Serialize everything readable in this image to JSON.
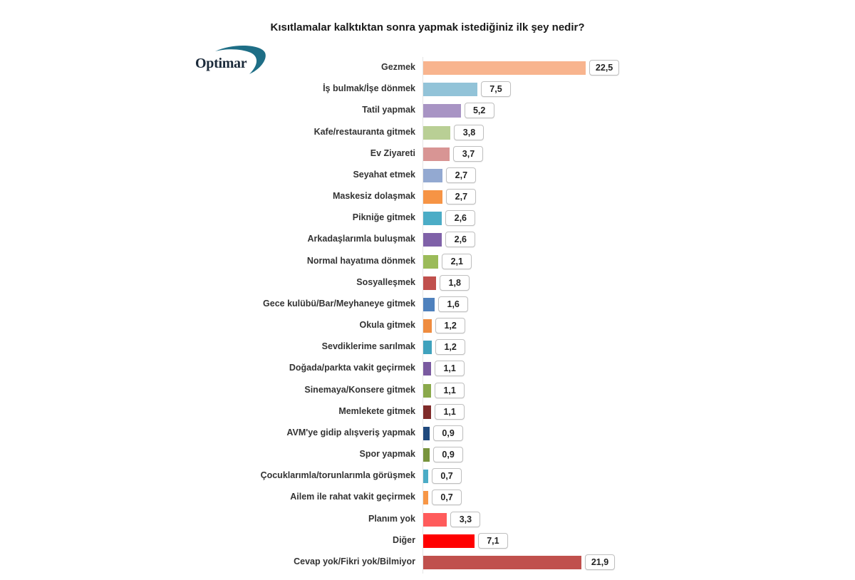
{
  "header": {
    "title": "Kısıtlamalar kalktıktan sonra yapmak istediğiniz ilk şey nedir?",
    "logo_text": "Optimar"
  },
  "chart_data": {
    "type": "bar",
    "orientation": "horizontal",
    "title": "Kısıtlamalar kalktıktan sonra yapmak istediğiniz ilk şey nedir?",
    "xlabel": "",
    "ylabel": "",
    "grid": false,
    "legend": null,
    "value_format": "comma-decimal",
    "categories": [
      "Gezmek",
      "İş bulmak/İşe dönmek",
      "Tatil yapmak",
      "Kafe/restauranta gitmek",
      "Ev Ziyareti",
      "Seyahat etmek",
      "Maskesiz dolaşmak",
      "Pikniğe gitmek",
      "Arkadaşlarımla buluşmak",
      "Normal hayatıma dönmek",
      "Sosyalleşmek",
      "Gece kulübü/Bar/Meyhaneye gitmek",
      "Okula gitmek",
      "Sevdiklerime sarılmak",
      "Doğada/parkta vakit geçirmek",
      "Sinemaya/Konsere gitmek",
      "Memlekete gitmek",
      "AVM'ye gidip alışveriş yapmak",
      "Spor yapmak",
      "Çocuklarımla/torunlarımla görüşmek",
      "Ailem ile rahat vakit geçirmek",
      "Planım yok",
      "Diğer",
      "Cevap yok/Fikri yok/Bilmiyor"
    ],
    "values": [
      22.5,
      7.5,
      5.2,
      3.8,
      3.7,
      2.7,
      2.7,
      2.6,
      2.6,
      2.1,
      1.8,
      1.6,
      1.2,
      1.2,
      1.1,
      1.1,
      1.1,
      0.9,
      0.9,
      0.7,
      0.7,
      3.3,
      7.1,
      21.9
    ],
    "value_labels": [
      "22,5",
      "7,5",
      "5,2",
      "3,8",
      "3,7",
      "2,7",
      "2,7",
      "2,6",
      "2,6",
      "2,1",
      "1,8",
      "1,6",
      "1,2",
      "1,2",
      "1,1",
      "1,1",
      "1,1",
      "0,9",
      "0,9",
      "0,7",
      "0,7",
      "3,3",
      "7,1",
      "21,9"
    ],
    "colors": [
      "#f8b48e",
      "#92c3d8",
      "#a894c4",
      "#b9cf95",
      "#d89594",
      "#93a9d1",
      "#f69445",
      "#4bacc6",
      "#7f61a8",
      "#9bbb59",
      "#c0504d",
      "#4f81bd",
      "#ef8c3f",
      "#3fa2bd",
      "#7a5aa0",
      "#8aa94b",
      "#7f2b2a",
      "#1f497d",
      "#77933c",
      "#4bacc6",
      "#f79646",
      "#ff5b5b",
      "#ff0000",
      "#c0504d"
    ]
  }
}
